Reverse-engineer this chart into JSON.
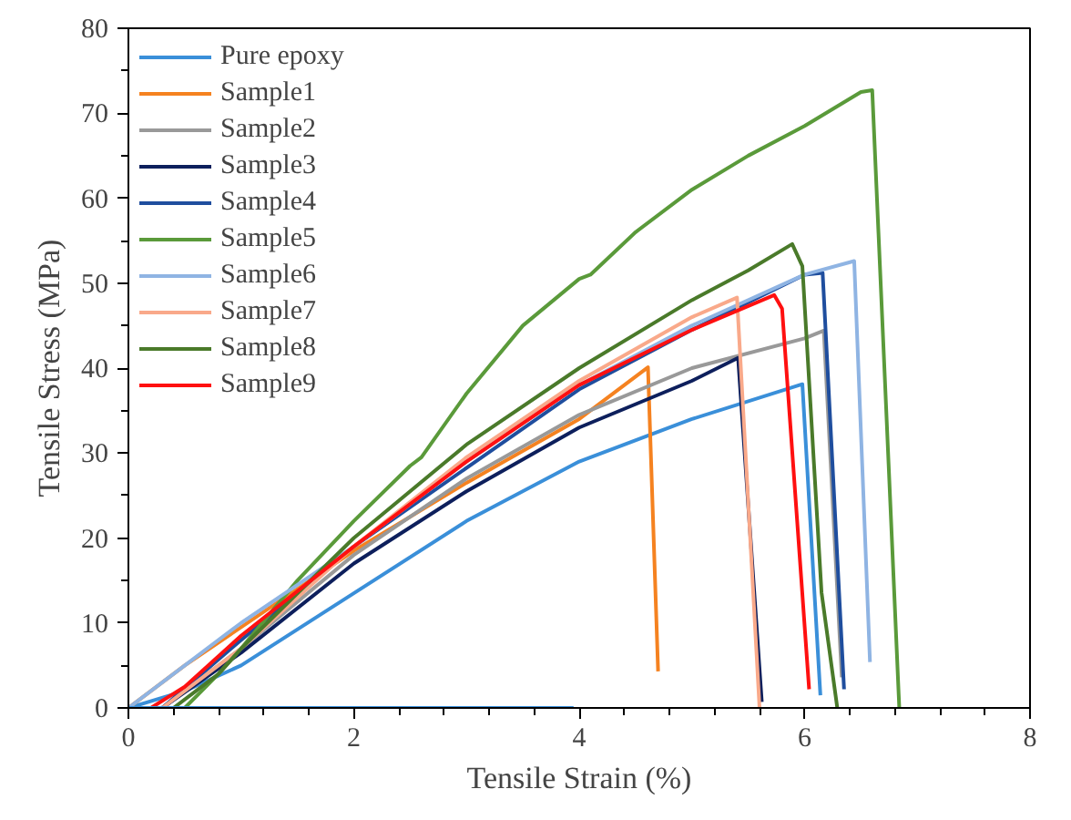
{
  "chart_data": {
    "type": "line",
    "xlabel": "Tensile Strain (%)",
    "ylabel": "Tensile Stress (MPa)",
    "xlim": [
      0,
      8
    ],
    "ylim": [
      0,
      80
    ],
    "xticks": [
      0,
      2,
      4,
      6,
      8
    ],
    "yticks": [
      0,
      10,
      20,
      30,
      40,
      50,
      60,
      70,
      80
    ],
    "grid": false,
    "legend": "top left",
    "marker": "none",
    "line_style": "solid",
    "series": [
      {
        "name": "Pure epoxy",
        "color": "#3a8fd9",
        "x": [
          0,
          0.5,
          1,
          2,
          3,
          4,
          5,
          5.98,
          6.14
        ],
        "values": [
          0,
          2,
          5,
          13.5,
          22,
          29,
          34,
          38.1,
          1.5
        ]
      },
      {
        "name": "Sample1",
        "color": "#f58220",
        "x": [
          0,
          0.5,
          1,
          1.5,
          2,
          3,
          4,
          4.61,
          4.7
        ],
        "values": [
          0,
          5,
          9.5,
          14,
          18.5,
          26.5,
          34,
          40.1,
          4.3
        ]
      },
      {
        "name": "Sample2",
        "color": "#999999",
        "x": [
          0.3,
          0.6,
          1,
          2,
          3,
          4,
          5,
          6,
          6.17,
          6.33
        ],
        "values": [
          0,
          3,
          7,
          18,
          27,
          34.5,
          40,
          43.5,
          44.4,
          3.6
        ]
      },
      {
        "name": "Sample3",
        "color": "#0d1f5c",
        "x": [
          0.3,
          1,
          2,
          3,
          4,
          5,
          5.41,
          5.62
        ],
        "values": [
          0,
          6.5,
          17,
          25.5,
          33,
          38.5,
          41.2,
          0.7
        ]
      },
      {
        "name": "Sample4",
        "color": "#1f4e9e",
        "x": [
          0.3,
          1,
          2,
          4,
          5,
          6,
          6.16,
          6.35
        ],
        "values": [
          0,
          8,
          19,
          37.5,
          44.5,
          51,
          51.2,
          2.2
        ]
      },
      {
        "name": "Sample5",
        "color": "#5a9a3a",
        "x": [
          0.5,
          0.8,
          1,
          1.5,
          2,
          2.5,
          2.6,
          3,
          3.5,
          4,
          4.1,
          4.5,
          5,
          5.5,
          6,
          6.5,
          6.6,
          6.84
        ],
        "values": [
          0,
          4,
          7,
          15,
          22,
          28.5,
          29.5,
          37,
          45,
          50.5,
          51,
          56,
          61,
          65,
          68.5,
          72.5,
          72.7,
          0
        ]
      },
      {
        "name": "Sample6",
        "color": "#8fb4e3",
        "x": [
          0,
          0.5,
          1,
          1.5,
          2,
          3,
          4,
          5,
          6,
          6.44,
          6.58
        ],
        "values": [
          0,
          5,
          10,
          14.5,
          19,
          29,
          38,
          45,
          51,
          52.6,
          5.4
        ]
      },
      {
        "name": "Sample7",
        "color": "#f9a98a",
        "x": [
          0.3,
          1,
          2,
          3,
          4,
          5,
          5.4,
          5.6
        ],
        "values": [
          0,
          7,
          19,
          29.5,
          38.5,
          46,
          48.3,
          0
        ]
      },
      {
        "name": "Sample8",
        "color": "#4a7a2a",
        "x": [
          0.4,
          0.8,
          1,
          2,
          3,
          4,
          5,
          5.5,
          5.89,
          5.98,
          6.15,
          6.29
        ],
        "values": [
          0,
          4,
          7,
          20,
          31,
          40,
          48,
          51.5,
          54.6,
          52,
          13.6,
          0
        ]
      },
      {
        "name": "Sample9",
        "color": "#ff1010",
        "x": [
          0.2,
          0.5,
          1,
          2,
          3,
          4,
          5,
          5.73,
          5.8,
          6.04
        ],
        "values": [
          0,
          2.5,
          8.5,
          19,
          29,
          38,
          44.5,
          48.6,
          47,
          2.2
        ]
      },
      {
        "color": "#3a8fd9",
        "x": [
          0,
          3.95
        ],
        "values": [
          0,
          0
        ]
      }
    ]
  }
}
